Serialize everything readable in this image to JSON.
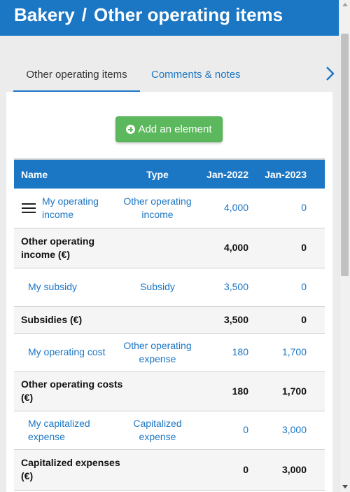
{
  "header": {
    "company": "Bakery",
    "separator": "/",
    "page": "Other operating items"
  },
  "tabs": [
    {
      "label": "Other operating items",
      "active": true
    },
    {
      "label": "Comments & notes",
      "active": false
    }
  ],
  "add_button": {
    "label": "Add an element",
    "icon": "plus-circle-icon"
  },
  "table": {
    "headers": {
      "name": "Name",
      "type": "Type",
      "col_a": "Jan-2022",
      "col_b": "Jan-2023"
    },
    "rows": [
      {
        "kind": "item",
        "name": "My operating income",
        "type": "Other operating income",
        "col_a": "4,000",
        "col_b": "0"
      },
      {
        "kind": "total",
        "name": "Other operating income (€)",
        "type": "",
        "col_a": "4,000",
        "col_b": "0"
      },
      {
        "kind": "item",
        "name": "My subsidy",
        "type": "Subsidy",
        "col_a": "3,500",
        "col_b": "0"
      },
      {
        "kind": "total",
        "name": "Subsidies (€)",
        "type": "",
        "col_a": "3,500",
        "col_b": "0"
      },
      {
        "kind": "item",
        "name": "My operating cost",
        "type": "Other operating expense",
        "col_a": "180",
        "col_b": "1,700"
      },
      {
        "kind": "total",
        "name": "Other operating costs (€)",
        "type": "",
        "col_a": "180",
        "col_b": "1,700"
      },
      {
        "kind": "item",
        "name": "My capitalized expense",
        "type": "Capitalized expense",
        "col_a": "0",
        "col_b": "3,000"
      },
      {
        "kind": "total",
        "name": "Capitalized expenses (€)",
        "type": "",
        "col_a": "0",
        "col_b": "3,000"
      }
    ]
  },
  "colors": {
    "primary": "#1b76c4",
    "success": "#5cb85c",
    "background": "#ececec"
  }
}
